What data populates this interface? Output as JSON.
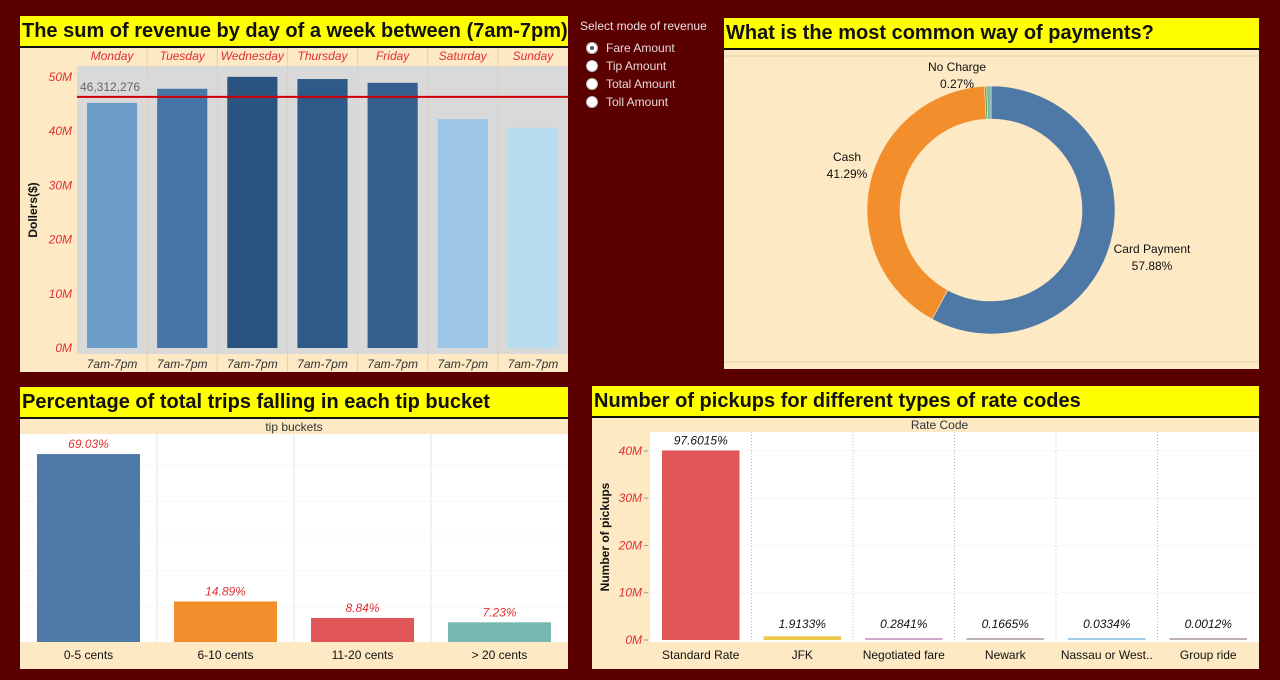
{
  "panels": {
    "revenue_title": "The sum of revenue by  day of a week between (7am-7pm)",
    "payments_title": "What is the most common way of payments?",
    "tips_title": "Percentage of total trips falling in each tip bucket",
    "ratecode_title": "Number of pickups for different types of rate codes"
  },
  "mode_selector": {
    "title": "Select mode of revenue",
    "options": [
      {
        "label": "Fare Amount",
        "selected": true
      },
      {
        "label": "Tip Amount",
        "selected": false
      },
      {
        "label": "Total Amount",
        "selected": false
      },
      {
        "label": "Toll Amount",
        "selected": false
      }
    ]
  },
  "chart_data": [
    {
      "id": "revenue",
      "type": "bar",
      "categories": [
        "Monday",
        "Tuesday",
        "Wednesday",
        "Thursday",
        "Friday",
        "Saturday",
        "Sunday"
      ],
      "x_tick_labels": [
        "7am-7pm",
        "7am-7pm",
        "7am-7pm",
        "7am-7pm",
        "7am-7pm",
        "7am-7pm",
        "7am-7pm"
      ],
      "values": [
        45.2,
        47.8,
        50.0,
        49.6,
        48.9,
        42.2,
        40.6
      ],
      "value_unit": "M",
      "ylabel": "Dollers($)",
      "ylim": [
        0,
        52
      ],
      "yticks": [
        0,
        10,
        20,
        30,
        40,
        50
      ],
      "ytick_labels": [
        "0M",
        "10M",
        "20M",
        "30M",
        "40M",
        "50M"
      ],
      "reference_line": {
        "value": 46.312276,
        "label": "46,312,276",
        "color": "#cc0000"
      },
      "colors": [
        "#6b9dc8",
        "#4775a6",
        "#2a537f",
        "#2e5a87",
        "#365f90",
        "#9cc5e6",
        "#b8dcf0"
      ],
      "grid": false
    },
    {
      "id": "payments",
      "type": "pie",
      "donut": true,
      "slices": [
        {
          "label": "Card Payment",
          "value": 57.88,
          "pct_label": "57.88%",
          "color": "#4e79a7"
        },
        {
          "label": "Cash",
          "value": 41.29,
          "pct_label": "41.29%",
          "color": "#f28e2b"
        },
        {
          "label": "No Charge",
          "value": 0.27,
          "pct_label": "0.27%",
          "color": "#59a14f"
        },
        {
          "label": "",
          "value": 0.56,
          "pct_label": "",
          "color": "#76b7b2"
        }
      ]
    },
    {
      "id": "tips",
      "type": "bar",
      "header": "tip buckets",
      "categories": [
        "0-5 cents",
        "6-10 cents",
        "11-20 cents",
        "> 20 cents"
      ],
      "values": [
        69.03,
        14.89,
        8.84,
        7.23
      ],
      "value_labels": [
        "69.03%",
        "14.89%",
        "8.84%",
        "7.23%"
      ],
      "ylim": [
        0,
        72
      ],
      "colors": [
        "#4e79a7",
        "#f28e2b",
        "#e15759",
        "#76b7b2"
      ],
      "grid": true
    },
    {
      "id": "ratecode",
      "type": "bar",
      "header": "Rate Code",
      "categories": [
        "Standard Rate",
        "JFK",
        "Negotiated fare",
        "Newark",
        "Nassau or West..",
        "Group ride"
      ],
      "values": [
        40.1,
        0.786,
        0.117,
        0.068,
        0.0137,
        0.0005
      ],
      "value_unit": "M",
      "value_labels": [
        "97.6015%",
        "1.9133%",
        "0.2841%",
        "0.1665%",
        "0.0334%",
        "0.0012%"
      ],
      "ylabel": "Number of pickups",
      "ylim": [
        0,
        44
      ],
      "yticks": [
        0,
        10,
        20,
        30,
        40
      ],
      "ytick_labels": [
        "0M",
        "10M",
        "20M",
        "30M",
        "40M"
      ],
      "colors": [
        "#e15759",
        "#edc948",
        "#d4a6c8",
        "#bab0ac",
        "#a0cbe8",
        "#bab0ac"
      ],
      "grid": true
    }
  ]
}
